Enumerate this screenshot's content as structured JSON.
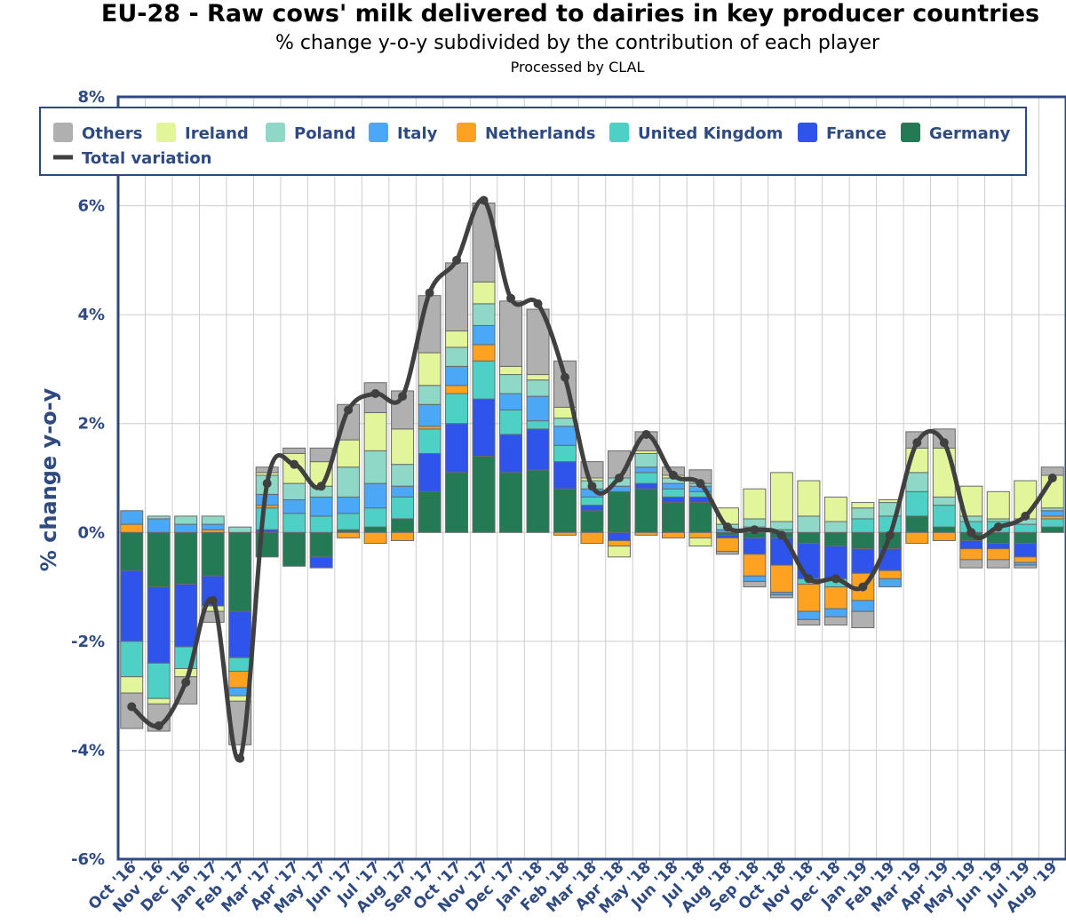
{
  "chart_data": {
    "type": "bar",
    "stacked": true,
    "title": "EU-28 - Raw cows' milk delivered to dairies in key producer countries",
    "subtitle": "% change y-o-y subdivided by the contribution of each player",
    "credit": "Processed by CLAL",
    "ylabel": "% change y-o-y",
    "ylim": [
      -6,
      8
    ],
    "yticks": [
      -6,
      -4,
      -2,
      0,
      2,
      4,
      6,
      8
    ],
    "ytick_labels": [
      "-6%",
      "-4%",
      "-2%",
      "0%",
      "2%",
      "4%",
      "6%",
      "8%"
    ],
    "grid": true,
    "legend_position": "top",
    "categories": [
      "Oct '16",
      "Nov '16",
      "Dec '16",
      "Jan '17",
      "Feb '17",
      "Mar '17",
      "Apr '17",
      "May '17",
      "Jun '17",
      "Jul '17",
      "Aug '17",
      "Sep '17",
      "Oct '17",
      "Nov '17",
      "Dec '17",
      "Jan '18",
      "Feb '18",
      "Mar '18",
      "Apr '18",
      "May '18",
      "Jun '18",
      "Jul '18",
      "Aug '18",
      "Sep '18",
      "Oct '18",
      "Nov '18",
      "Dec '18",
      "Jan '19",
      "Feb '19",
      "Mar '19",
      "Apr '19",
      "May '19",
      "Jun '19",
      "Jul '19",
      "Aug '19"
    ],
    "series": [
      {
        "name": "Germany",
        "color": "#237a55",
        "values": [
          -0.7,
          -1.0,
          -0.95,
          -0.8,
          -1.45,
          -0.45,
          -0.62,
          -0.45,
          0.05,
          0.1,
          0.25,
          0.75,
          1.1,
          1.4,
          1.1,
          1.15,
          0.8,
          0.4,
          0.75,
          0.8,
          0.55,
          0.55,
          -0.05,
          -0.1,
          -0.1,
          -0.2,
          -0.25,
          -0.3,
          -0.3,
          0.3,
          0.1,
          -0.15,
          -0.2,
          -0.2,
          0.1
        ]
      },
      {
        "name": "France",
        "color": "#2f54eb",
        "values": [
          -1.3,
          -1.4,
          -1.15,
          -0.55,
          -0.85,
          0.05,
          0.0,
          -0.2,
          0.0,
          0.0,
          0.0,
          0.7,
          0.9,
          1.05,
          0.7,
          0.75,
          0.5,
          0.1,
          -0.15,
          0.1,
          0.1,
          0.1,
          -0.05,
          -0.3,
          -0.5,
          -0.65,
          -0.6,
          -0.45,
          -0.4,
          0.0,
          0.0,
          -0.15,
          -0.1,
          -0.25,
          0.0
        ]
      },
      {
        "name": "United Kingdom",
        "color": "#4fd0c6",
        "values": [
          -0.65,
          -0.65,
          -0.4,
          0.0,
          -0.25,
          0.4,
          0.35,
          0.3,
          0.3,
          0.35,
          0.4,
          0.45,
          0.55,
          0.7,
          0.45,
          0.15,
          0.3,
          0.15,
          0.0,
          0.2,
          0.15,
          0.1,
          0.0,
          0.1,
          0.05,
          -0.1,
          -0.15,
          0.25,
          0.3,
          0.45,
          0.4,
          0.2,
          0.2,
          0.15,
          0.15
        ]
      },
      {
        "name": "Netherlands",
        "color": "#ffa222",
        "values": [
          0.15,
          0.0,
          0.0,
          0.05,
          -0.3,
          0.05,
          0.0,
          0.0,
          -0.1,
          -0.2,
          -0.15,
          0.05,
          0.15,
          0.3,
          0.0,
          0.0,
          -0.05,
          -0.2,
          -0.1,
          -0.05,
          -0.1,
          -0.1,
          -0.25,
          -0.4,
          -0.5,
          -0.5,
          -0.4,
          -0.5,
          -0.15,
          -0.2,
          -0.15,
          -0.2,
          -0.2,
          -0.1,
          0.05
        ]
      },
      {
        "name": "Italy",
        "color": "#4aa8f7",
        "values": [
          0.25,
          0.25,
          0.15,
          0.1,
          -0.15,
          0.2,
          0.25,
          0.35,
          0.3,
          0.45,
          0.2,
          0.4,
          0.35,
          0.35,
          0.3,
          0.45,
          0.35,
          0.15,
          0.1,
          0.1,
          0.1,
          0.1,
          0.05,
          -0.1,
          -0.05,
          -0.15,
          -0.15,
          -0.2,
          -0.15,
          0.0,
          0.0,
          0.0,
          0.0,
          -0.05,
          0.1
        ]
      },
      {
        "name": "Poland",
        "color": "#8fd8c8",
        "values": [
          0.0,
          0.05,
          0.15,
          0.15,
          0.1,
          0.35,
          0.3,
          0.2,
          0.55,
          0.6,
          0.4,
          0.35,
          0.35,
          0.4,
          0.35,
          0.3,
          0.15,
          0.15,
          0.15,
          0.25,
          0.1,
          0.05,
          0.1,
          0.15,
          0.15,
          0.3,
          0.2,
          0.2,
          0.25,
          0.35,
          0.15,
          0.1,
          0.05,
          0.1,
          0.05
        ]
      },
      {
        "name": "Ireland",
        "color": "#e3f59b",
        "values": [
          -0.3,
          -0.1,
          -0.15,
          -0.1,
          -0.1,
          0.05,
          0.55,
          0.45,
          0.5,
          0.7,
          0.65,
          0.6,
          0.3,
          0.4,
          0.15,
          0.1,
          0.2,
          0.05,
          -0.2,
          0.05,
          0.05,
          -0.15,
          0.3,
          0.55,
          0.9,
          0.65,
          0.45,
          0.1,
          0.05,
          0.45,
          0.9,
          0.55,
          0.5,
          0.7,
          0.6
        ]
      },
      {
        "name": "Others",
        "color": "#b0b0b0",
        "values": [
          -0.65,
          -0.5,
          -0.5,
          -0.2,
          -0.8,
          0.1,
          0.1,
          0.25,
          0.65,
          0.55,
          0.7,
          1.05,
          1.25,
          1.45,
          1.2,
          1.2,
          0.85,
          0.3,
          0.5,
          0.35,
          0.15,
          0.25,
          -0.05,
          -0.1,
          -0.05,
          -0.1,
          -0.15,
          -0.3,
          0.0,
          0.3,
          0.35,
          -0.15,
          -0.15,
          -0.05,
          0.15
        ]
      }
    ],
    "line_series": {
      "name": "Total variation",
      "color": "#404040",
      "values": [
        -3.2,
        -3.55,
        -2.75,
        -1.25,
        -4.15,
        0.9,
        1.25,
        0.85,
        2.25,
        2.55,
        2.5,
        4.4,
        5.0,
        6.1,
        4.3,
        4.2,
        2.85,
        0.85,
        1.0,
        1.8,
        1.05,
        0.9,
        0.1,
        0.05,
        -0.05,
        -0.85,
        -0.85,
        -1.0,
        -0.05,
        1.65,
        1.65,
        0.0,
        0.1,
        0.3,
        1.0
      ]
    }
  },
  "legend": {
    "items": [
      {
        "label": "Others",
        "color": "#b0b0b0",
        "kind": "swatch"
      },
      {
        "label": "Ireland",
        "color": "#e3f59b",
        "kind": "swatch"
      },
      {
        "label": "Poland",
        "color": "#8fd8c8",
        "kind": "swatch"
      },
      {
        "label": "Italy",
        "color": "#4aa8f7",
        "kind": "swatch"
      },
      {
        "label": "Netherlands",
        "color": "#ffa222",
        "kind": "swatch"
      },
      {
        "label": "United Kingdom",
        "color": "#4fd0c6",
        "kind": "swatch"
      },
      {
        "label": "France",
        "color": "#2f54eb",
        "kind": "swatch"
      },
      {
        "label": "Germany",
        "color": "#237a55",
        "kind": "swatch"
      },
      {
        "label": "Total variation",
        "color": "#404040",
        "kind": "line"
      }
    ]
  }
}
